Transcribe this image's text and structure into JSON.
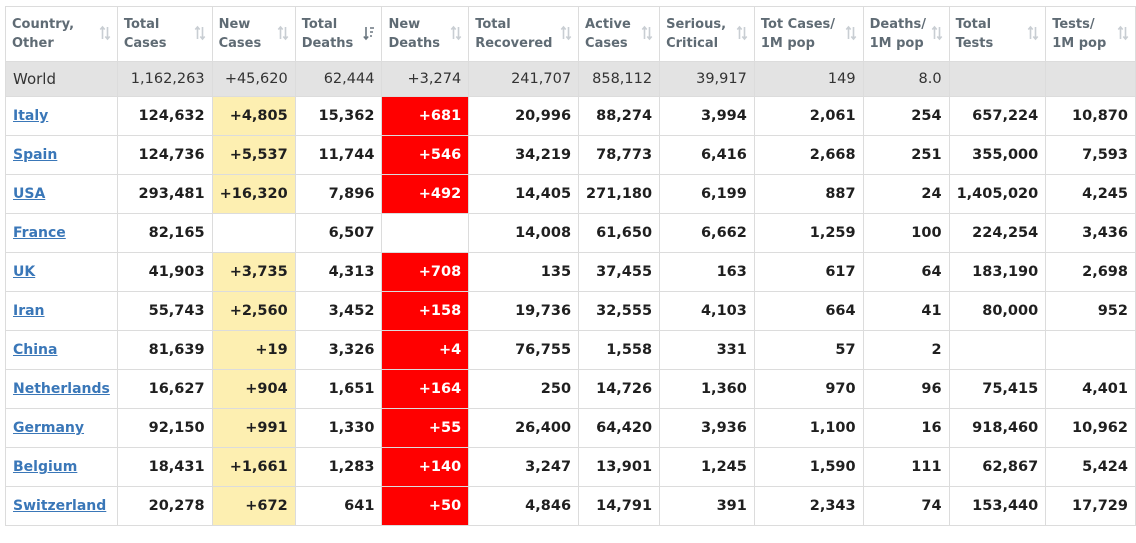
{
  "colors": {
    "new_cases_bg": "#fdefb1",
    "new_deaths_bg": "#ff0000",
    "link": "#3a77b8",
    "world_row_bg": "#e3e3e3"
  },
  "headers": [
    {
      "line1": "Country,",
      "line2": "Other",
      "sort_icon": "sort-icon"
    },
    {
      "line1": "Total",
      "line2": "Cases",
      "sort_icon": "sort-icon"
    },
    {
      "line1": "New",
      "line2": "Cases",
      "sort_icon": "sort-icon"
    },
    {
      "line1": "Total",
      "line2": "Deaths",
      "sort_icon": "sort-descending-icon"
    },
    {
      "line1": "New",
      "line2": "Deaths",
      "sort_icon": "sort-icon"
    },
    {
      "line1": "Total",
      "line2": "Recovered",
      "sort_icon": "sort-icon"
    },
    {
      "line1": "Active",
      "line2": "Cases",
      "sort_icon": "sort-icon"
    },
    {
      "line1": "Serious,",
      "line2": "Critical",
      "sort_icon": "sort-icon"
    },
    {
      "line1": "Tot Cases/",
      "line2": "1M pop",
      "sort_icon": "sort-icon"
    },
    {
      "line1": "Deaths/",
      "line2": "1M pop",
      "sort_icon": "sort-icon"
    },
    {
      "line1": "Total",
      "line2": "Tests",
      "sort_icon": "sort-icon"
    },
    {
      "line1": "Tests/",
      "line2": "1M pop",
      "sort_icon": "sort-icon"
    }
  ],
  "world": {
    "country": "World",
    "total_cases": "1,162,263",
    "new_cases": "+45,620",
    "total_deaths": "62,444",
    "new_deaths": "+3,274",
    "total_recovered": "241,707",
    "active_cases": "858,112",
    "serious_critical": "39,917",
    "cases_per_1m": "149",
    "deaths_per_1m": "8.0",
    "total_tests": "",
    "tests_per_1m": ""
  },
  "rows": [
    {
      "country": "Italy",
      "total_cases": "124,632",
      "new_cases": "+4,805",
      "total_deaths": "15,362",
      "new_deaths": "+681",
      "total_recovered": "20,996",
      "active_cases": "88,274",
      "serious_critical": "3,994",
      "cases_per_1m": "2,061",
      "deaths_per_1m": "254",
      "total_tests": "657,224",
      "tests_per_1m": "10,870"
    },
    {
      "country": "Spain",
      "total_cases": "124,736",
      "new_cases": "+5,537",
      "total_deaths": "11,744",
      "new_deaths": "+546",
      "total_recovered": "34,219",
      "active_cases": "78,773",
      "serious_critical": "6,416",
      "cases_per_1m": "2,668",
      "deaths_per_1m": "251",
      "total_tests": "355,000",
      "tests_per_1m": "7,593"
    },
    {
      "country": "USA",
      "total_cases": "293,481",
      "new_cases": "+16,320",
      "total_deaths": "7,896",
      "new_deaths": "+492",
      "total_recovered": "14,405",
      "active_cases": "271,180",
      "serious_critical": "6,199",
      "cases_per_1m": "887",
      "deaths_per_1m": "24",
      "total_tests": "1,405,020",
      "tests_per_1m": "4,245"
    },
    {
      "country": "France",
      "total_cases": "82,165",
      "new_cases": "",
      "total_deaths": "6,507",
      "new_deaths": "",
      "total_recovered": "14,008",
      "active_cases": "61,650",
      "serious_critical": "6,662",
      "cases_per_1m": "1,259",
      "deaths_per_1m": "100",
      "total_tests": "224,254",
      "tests_per_1m": "3,436"
    },
    {
      "country": "UK",
      "total_cases": "41,903",
      "new_cases": "+3,735",
      "total_deaths": "4,313",
      "new_deaths": "+708",
      "total_recovered": "135",
      "active_cases": "37,455",
      "serious_critical": "163",
      "cases_per_1m": "617",
      "deaths_per_1m": "64",
      "total_tests": "183,190",
      "tests_per_1m": "2,698"
    },
    {
      "country": "Iran",
      "total_cases": "55,743",
      "new_cases": "+2,560",
      "total_deaths": "3,452",
      "new_deaths": "+158",
      "total_recovered": "19,736",
      "active_cases": "32,555",
      "serious_critical": "4,103",
      "cases_per_1m": "664",
      "deaths_per_1m": "41",
      "total_tests": "80,000",
      "tests_per_1m": "952"
    },
    {
      "country": "China",
      "total_cases": "81,639",
      "new_cases": "+19",
      "total_deaths": "3,326",
      "new_deaths": "+4",
      "total_recovered": "76,755",
      "active_cases": "1,558",
      "serious_critical": "331",
      "cases_per_1m": "57",
      "deaths_per_1m": "2",
      "total_tests": "",
      "tests_per_1m": ""
    },
    {
      "country": "Netherlands",
      "total_cases": "16,627",
      "new_cases": "+904",
      "total_deaths": "1,651",
      "new_deaths": "+164",
      "total_recovered": "250",
      "active_cases": "14,726",
      "serious_critical": "1,360",
      "cases_per_1m": "970",
      "deaths_per_1m": "96",
      "total_tests": "75,415",
      "tests_per_1m": "4,401"
    },
    {
      "country": "Germany",
      "total_cases": "92,150",
      "new_cases": "+991",
      "total_deaths": "1,330",
      "new_deaths": "+55",
      "total_recovered": "26,400",
      "active_cases": "64,420",
      "serious_critical": "3,936",
      "cases_per_1m": "1,100",
      "deaths_per_1m": "16",
      "total_tests": "918,460",
      "tests_per_1m": "10,962"
    },
    {
      "country": "Belgium",
      "total_cases": "18,431",
      "new_cases": "+1,661",
      "total_deaths": "1,283",
      "new_deaths": "+140",
      "total_recovered": "3,247",
      "active_cases": "13,901",
      "serious_critical": "1,245",
      "cases_per_1m": "1,590",
      "deaths_per_1m": "111",
      "total_tests": "62,867",
      "tests_per_1m": "5,424"
    },
    {
      "country": "Switzerland",
      "total_cases": "20,278",
      "new_cases": "+672",
      "total_deaths": "641",
      "new_deaths": "+50",
      "total_recovered": "4,846",
      "active_cases": "14,791",
      "serious_critical": "391",
      "cases_per_1m": "2,343",
      "deaths_per_1m": "74",
      "total_tests": "153,440",
      "tests_per_1m": "17,729"
    }
  ]
}
